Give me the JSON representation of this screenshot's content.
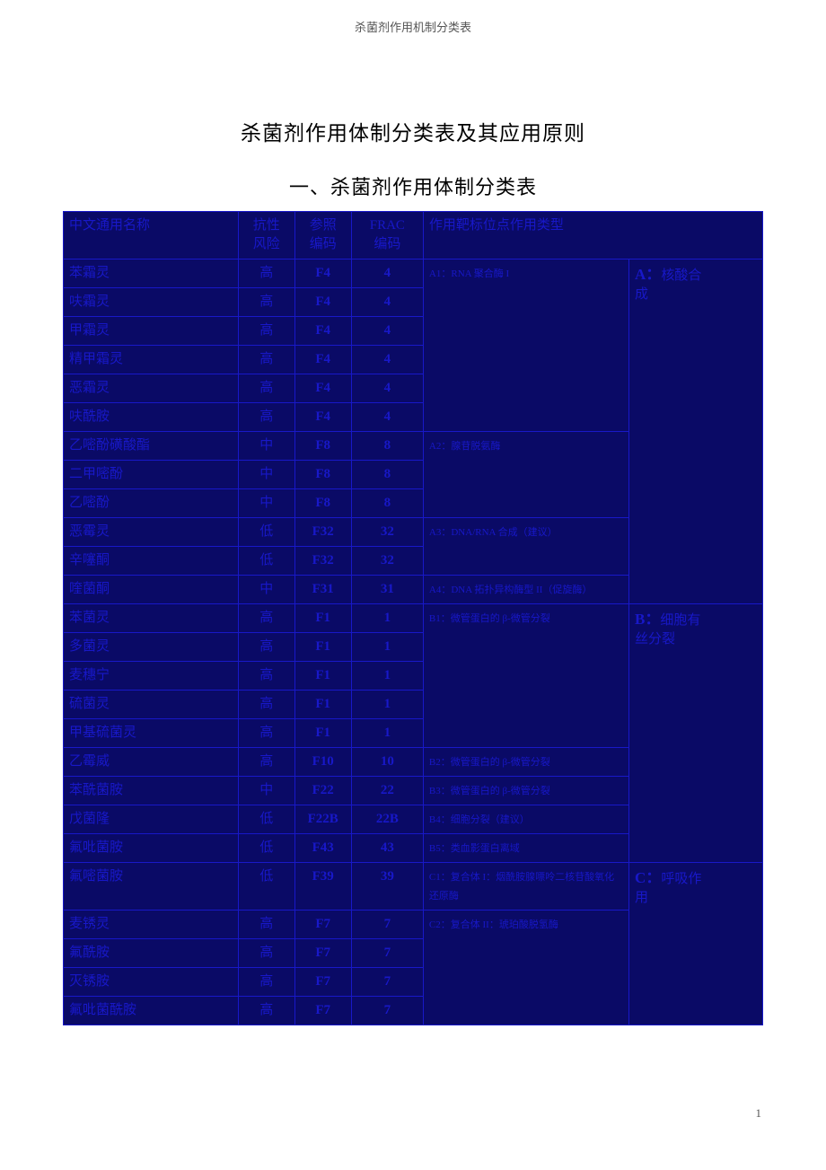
{
  "doc_header": "杀菌剂作用机制分类表",
  "title_main": "杀菌剂作用体制分类表及其应用原则",
  "title_section": "一、杀菌剂作用体制分类表",
  "page_number": "1",
  "colors": {
    "table_bg": "#0a0a66",
    "table_border": "#1818c8",
    "table_text": "#1818c8",
    "body_text": "#000000",
    "header_text": "#555555",
    "page_bg": "#ffffff"
  },
  "header": {
    "col_name": "中文通用名称",
    "col_risk_line1": "抗性",
    "col_risk_line2": "风险",
    "col_ref_line1": "参照",
    "col_ref_line2": "编码",
    "col_frac_line1": "FRAC",
    "col_frac_line2": "编码",
    "col_target_type": "作用靶标位点作用类型"
  },
  "groups": [
    {
      "target_prefix": "A1：RNA 聚合酶 I",
      "type_big": "A：",
      "type_rest_line1": "核酸合",
      "type_rest_line2": "成",
      "rows": [
        {
          "name": "苯霜灵",
          "risk": "高",
          "ref": "F4",
          "frac": "4"
        },
        {
          "name": "呋霜灵",
          "risk": "高",
          "ref": "F4",
          "frac": "4"
        },
        {
          "name": "甲霜灵",
          "risk": "高",
          "ref": "F4",
          "frac": "4"
        },
        {
          "name": "精甲霜灵",
          "risk": "高",
          "ref": "F4",
          "frac": "4"
        },
        {
          "name": "恶霜灵",
          "risk": "高",
          "ref": "F4",
          "frac": "4"
        },
        {
          "name": "呋酰胺",
          "risk": "高",
          "ref": "F4",
          "frac": "4"
        }
      ]
    },
    {
      "target_prefix": "A2：腺苷脱氨酶",
      "rows": [
        {
          "name": "乙嘧酚磺酸酯",
          "risk": "中",
          "ref": "F8",
          "frac": "8"
        },
        {
          "name": "二甲嘧酚",
          "risk": "中",
          "ref": "F8",
          "frac": "8"
        },
        {
          "name": "乙嘧酚",
          "risk": "中",
          "ref": "F8",
          "frac": "8"
        }
      ]
    },
    {
      "target_prefix": "A3：DNA/RNA 合成（建议）",
      "rows": [
        {
          "name": "恶霉灵",
          "risk": "低",
          "ref": "F32",
          "frac": "32"
        },
        {
          "name": "辛噻酮",
          "risk": "低",
          "ref": "F32",
          "frac": "32"
        }
      ]
    },
    {
      "target_prefix": "A4：DNA 拓扑异构酶型 II（促旋酶）",
      "rows": [
        {
          "name": "喹菌酮",
          "risk": "中",
          "ref": "F31",
          "frac": "31"
        }
      ]
    },
    {
      "target_prefix": "B1：微管蛋白的 β-微管分裂",
      "type_big": "B：",
      "type_rest_line1": "细胞有",
      "type_rest_line2": "丝分裂",
      "rows": [
        {
          "name": "苯菌灵",
          "risk": "高",
          "ref": "F1",
          "frac": "1"
        },
        {
          "name": "多菌灵",
          "risk": "高",
          "ref": "F1",
          "frac": "1"
        },
        {
          "name": "麦穗宁",
          "risk": "高",
          "ref": "F1",
          "frac": "1"
        },
        {
          "name": "硫菌灵",
          "risk": "高",
          "ref": "F1",
          "frac": "1"
        },
        {
          "name": "甲基硫菌灵",
          "risk": "高",
          "ref": "F1",
          "frac": "1"
        }
      ]
    },
    {
      "target_prefix": "B2：微管蛋白的 β-微管分裂",
      "rows": [
        {
          "name": "乙霉威",
          "risk": "高",
          "ref": "F10",
          "frac": "10"
        }
      ]
    },
    {
      "target_prefix": "B3：微管蛋白的 β-微管分裂",
      "rows": [
        {
          "name": "苯酰菌胺",
          "risk": "中",
          "ref": "F22",
          "frac": "22"
        }
      ]
    },
    {
      "target_prefix": "B4：细胞分裂（建议）",
      "rows": [
        {
          "name": "戊菌隆",
          "risk": "低",
          "ref": "F22B",
          "frac": "22B"
        }
      ]
    },
    {
      "target_prefix": "B5：类血影蛋白离域",
      "rows": [
        {
          "name": "氟吡菌胺",
          "risk": "低",
          "ref": "F43",
          "frac": "43"
        }
      ]
    },
    {
      "target_prefix": "C1：复合体 I：烟酰胺腺嘌呤二核苷酸氧化还原酶",
      "type_big": "C：",
      "type_rest_line1": "呼吸作",
      "type_rest_line2": "用",
      "rows": [
        {
          "name": "氟嘧菌胺",
          "risk": "低",
          "ref": "F39",
          "frac": "39"
        }
      ]
    },
    {
      "target_prefix": "C2：复合体 II：琥珀酸脱氢酶",
      "rows": [
        {
          "name": "麦锈灵",
          "risk": "高",
          "ref": "F7",
          "frac": "7"
        },
        {
          "name": "氟酰胺",
          "risk": "高",
          "ref": "F7",
          "frac": "7"
        },
        {
          "name": "灭锈胺",
          "risk": "高",
          "ref": "F7",
          "frac": "7"
        },
        {
          "name": "氟吡菌酰胺",
          "risk": "高",
          "ref": "F7",
          "frac": "7"
        }
      ]
    }
  ]
}
